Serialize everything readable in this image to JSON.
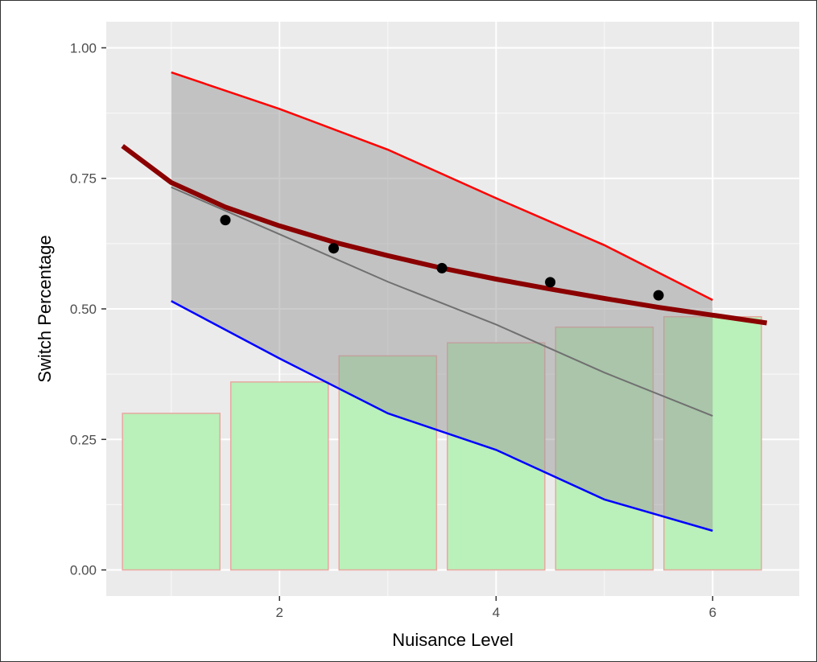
{
  "chart_data": {
    "type": "bar",
    "xlabel": "Nuisance Level",
    "ylabel": "Switch Percentage",
    "xlim": [
      0.4,
      6.8
    ],
    "ylim": [
      -0.05,
      1.05
    ],
    "x_ticks": [
      2,
      4,
      6
    ],
    "x_tick_labels": [
      "2",
      "4",
      "6"
    ],
    "y_ticks": [
      0,
      0.25,
      0.5,
      0.75,
      1.0
    ],
    "y_tick_labels": [
      "0.00",
      "0.25",
      "0.50",
      "0.75",
      "1.00"
    ],
    "grid": true,
    "bars": {
      "x": [
        1,
        2,
        3,
        4,
        5,
        6
      ],
      "values": [
        0.3,
        0.36,
        0.41,
        0.435,
        0.465,
        0.485
      ],
      "width": 0.9,
      "fill": "#baf0ba",
      "stroke": "#e8a8a0"
    },
    "band": {
      "x": [
        1,
        2,
        3,
        4,
        5,
        6
      ],
      "upper": [
        0.953,
        0.883,
        0.805,
        0.712,
        0.622,
        0.517
      ],
      "lower": [
        0.515,
        0.405,
        0.3,
        0.23,
        0.135,
        0.075
      ],
      "fill": "#999999",
      "fill_opacity": 0.5,
      "upper_color": "#ff0000",
      "lower_color": "#0000ff"
    },
    "mean_line": {
      "x": [
        1,
        2,
        3,
        4,
        5,
        6
      ],
      "values": [
        0.733,
        0.643,
        0.552,
        0.47,
        0.378,
        0.295
      ],
      "color": "#707070"
    },
    "points": {
      "x": [
        1.5,
        2.5,
        3.5,
        4.5,
        5.5
      ],
      "values": [
        0.67,
        0.616,
        0.578,
        0.551,
        0.526
      ],
      "color": "#000000"
    },
    "fit_curve": {
      "x": [
        0.55,
        1,
        1.5,
        2,
        2.5,
        3,
        3.5,
        4,
        4.5,
        5,
        5.5,
        6,
        6.5
      ],
      "values": [
        0.812,
        0.742,
        0.695,
        0.659,
        0.628,
        0.602,
        0.578,
        0.557,
        0.538,
        0.52,
        0.503,
        0.488,
        0.473
      ],
      "color": "#8b0000"
    },
    "colors": {
      "panel": "#ebebeb",
      "grid_major": "#ffffff",
      "grid_minor": "#f7f7f7"
    }
  }
}
